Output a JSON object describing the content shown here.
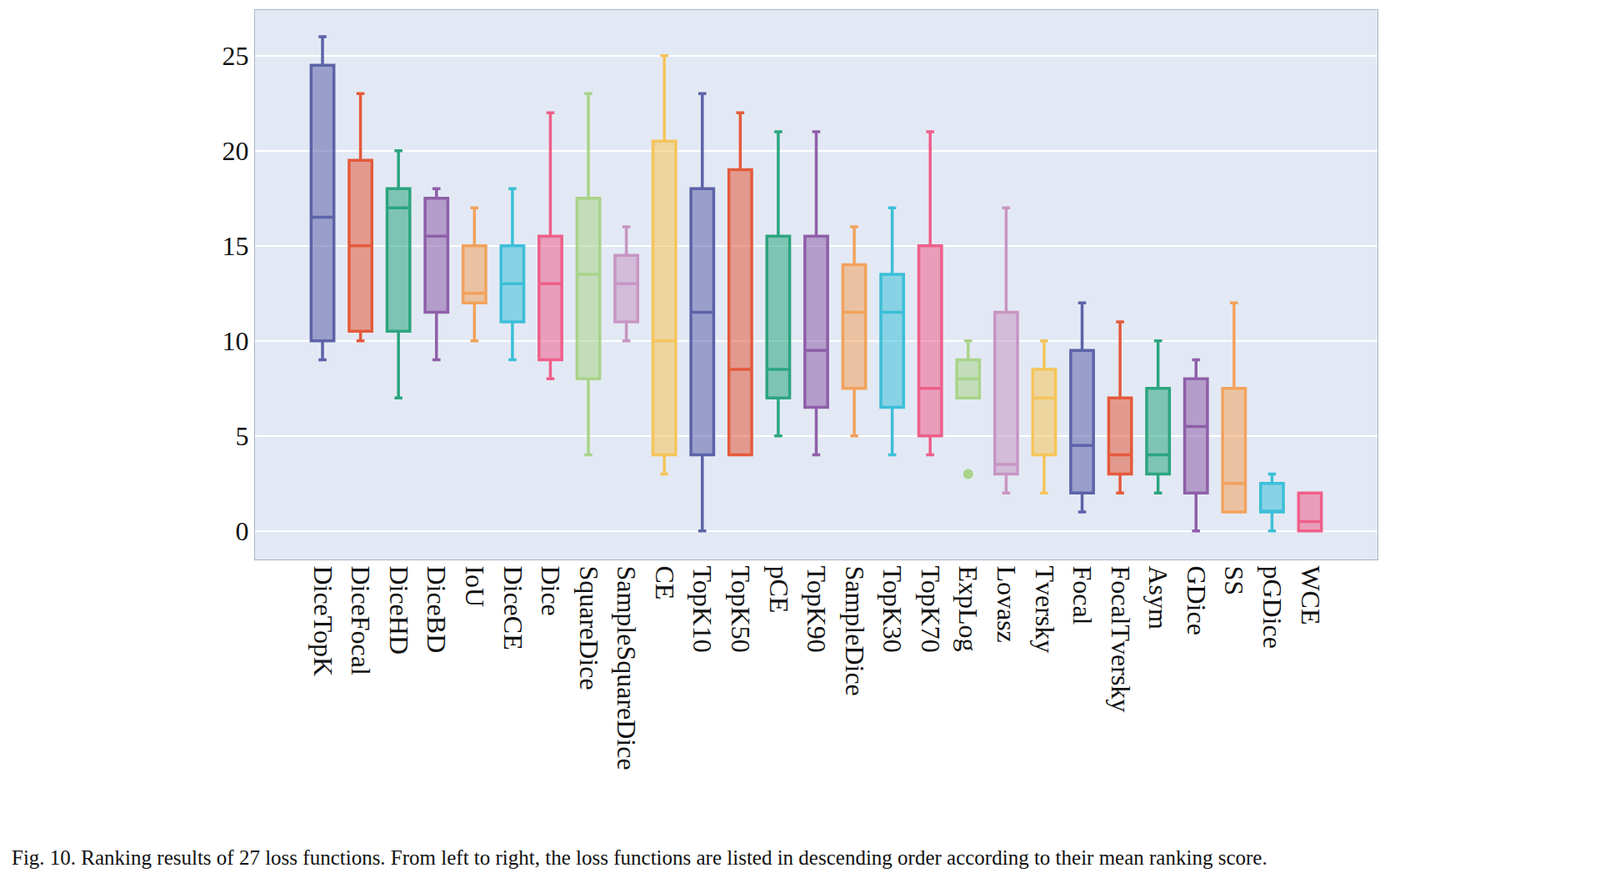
{
  "chart_data": {
    "type": "box",
    "caption": "Fig. 10. Ranking results of 27 loss functions. From left to right, the loss functions are listed in descending order according to their mean ranking score.",
    "categories": [
      "DiceTopK",
      "DiceFocal",
      "DiceHD",
      "DiceBD",
      "IoU",
      "DiceCE",
      "Dice",
      "SquareDice",
      "SampleSquareDice",
      "CE",
      "TopK10",
      "TopK50",
      "pCE",
      "TopK90",
      "SampleDice",
      "TopK30",
      "TopK70",
      "ExpLog",
      "Lovasz",
      "Tversky",
      "Focal",
      "FocalTversky",
      "Asym",
      "GDice",
      "SS",
      "pGDice",
      "WCE"
    ],
    "max": [
      26,
      23,
      20,
      18,
      17,
      18,
      22,
      23,
      16,
      25,
      23,
      22,
      21,
      21,
      16,
      17,
      21,
      10,
      17,
      10,
      12,
      11,
      10,
      9,
      12,
      3,
      2
    ],
    "q3": [
      24.5,
      19.5,
      18,
      17.5,
      15,
      15,
      15.5,
      17.5,
      14.5,
      20.5,
      18,
      19,
      15.5,
      15.5,
      14,
      13.5,
      15,
      9,
      11.5,
      8.5,
      9.5,
      7,
      7.5,
      8,
      7.5,
      2.5,
      2
    ],
    "median": [
      16.5,
      15,
      17,
      15.5,
      12.5,
      13,
      13,
      13.5,
      13,
      10,
      11.5,
      8.5,
      8.5,
      9.5,
      11.5,
      11.5,
      7.5,
      8,
      3.5,
      7,
      4.5,
      4,
      4,
      5.5,
      2.5,
      1,
      0.5
    ],
    "q1": [
      10,
      10.5,
      10.5,
      11.5,
      12,
      11,
      9,
      8,
      11,
      4,
      4,
      4,
      7,
      6.5,
      7.5,
      6.5,
      5,
      7,
      3,
      4,
      2,
      3,
      3,
      2,
      1,
      1,
      0
    ],
    "min": [
      9,
      10,
      7,
      9,
      10,
      9,
      8,
      4,
      10,
      3,
      0,
      4,
      5,
      4,
      5,
      4,
      4,
      7,
      2,
      2,
      1,
      2,
      2,
      0,
      1,
      0,
      0
    ],
    "outliers": [
      [],
      [],
      [],
      [],
      [],
      [],
      [],
      [],
      [],
      [],
      [],
      [],
      [],
      [],
      [],
      [],
      [],
      [
        3
      ],
      [],
      [],
      [],
      [],
      [],
      [],
      [],
      [],
      []
    ],
    "colors": [
      "#5c63a8",
      "#e45a3b",
      "#2ca57f",
      "#8e5fa8",
      "#f2a25c",
      "#3cbfd8",
      "#ee5f8a",
      "#a9d48a",
      "#c796c4",
      "#f5c45a",
      "#5c63a8",
      "#e45a3b",
      "#2ca57f",
      "#8e5fa8",
      "#f2a25c",
      "#3cbfd8",
      "#ee5f8a",
      "#a9d48a",
      "#c796c4",
      "#f5c45a",
      "#5c63a8",
      "#e45a3b",
      "#2ca57f",
      "#8e5fa8",
      "#f2a25c",
      "#3cbfd8",
      "#ee5f8a"
    ],
    "ylim": [
      -1.5,
      27.4
    ],
    "yticks": [
      0,
      5,
      10,
      15,
      20,
      25
    ],
    "grid": true
  }
}
